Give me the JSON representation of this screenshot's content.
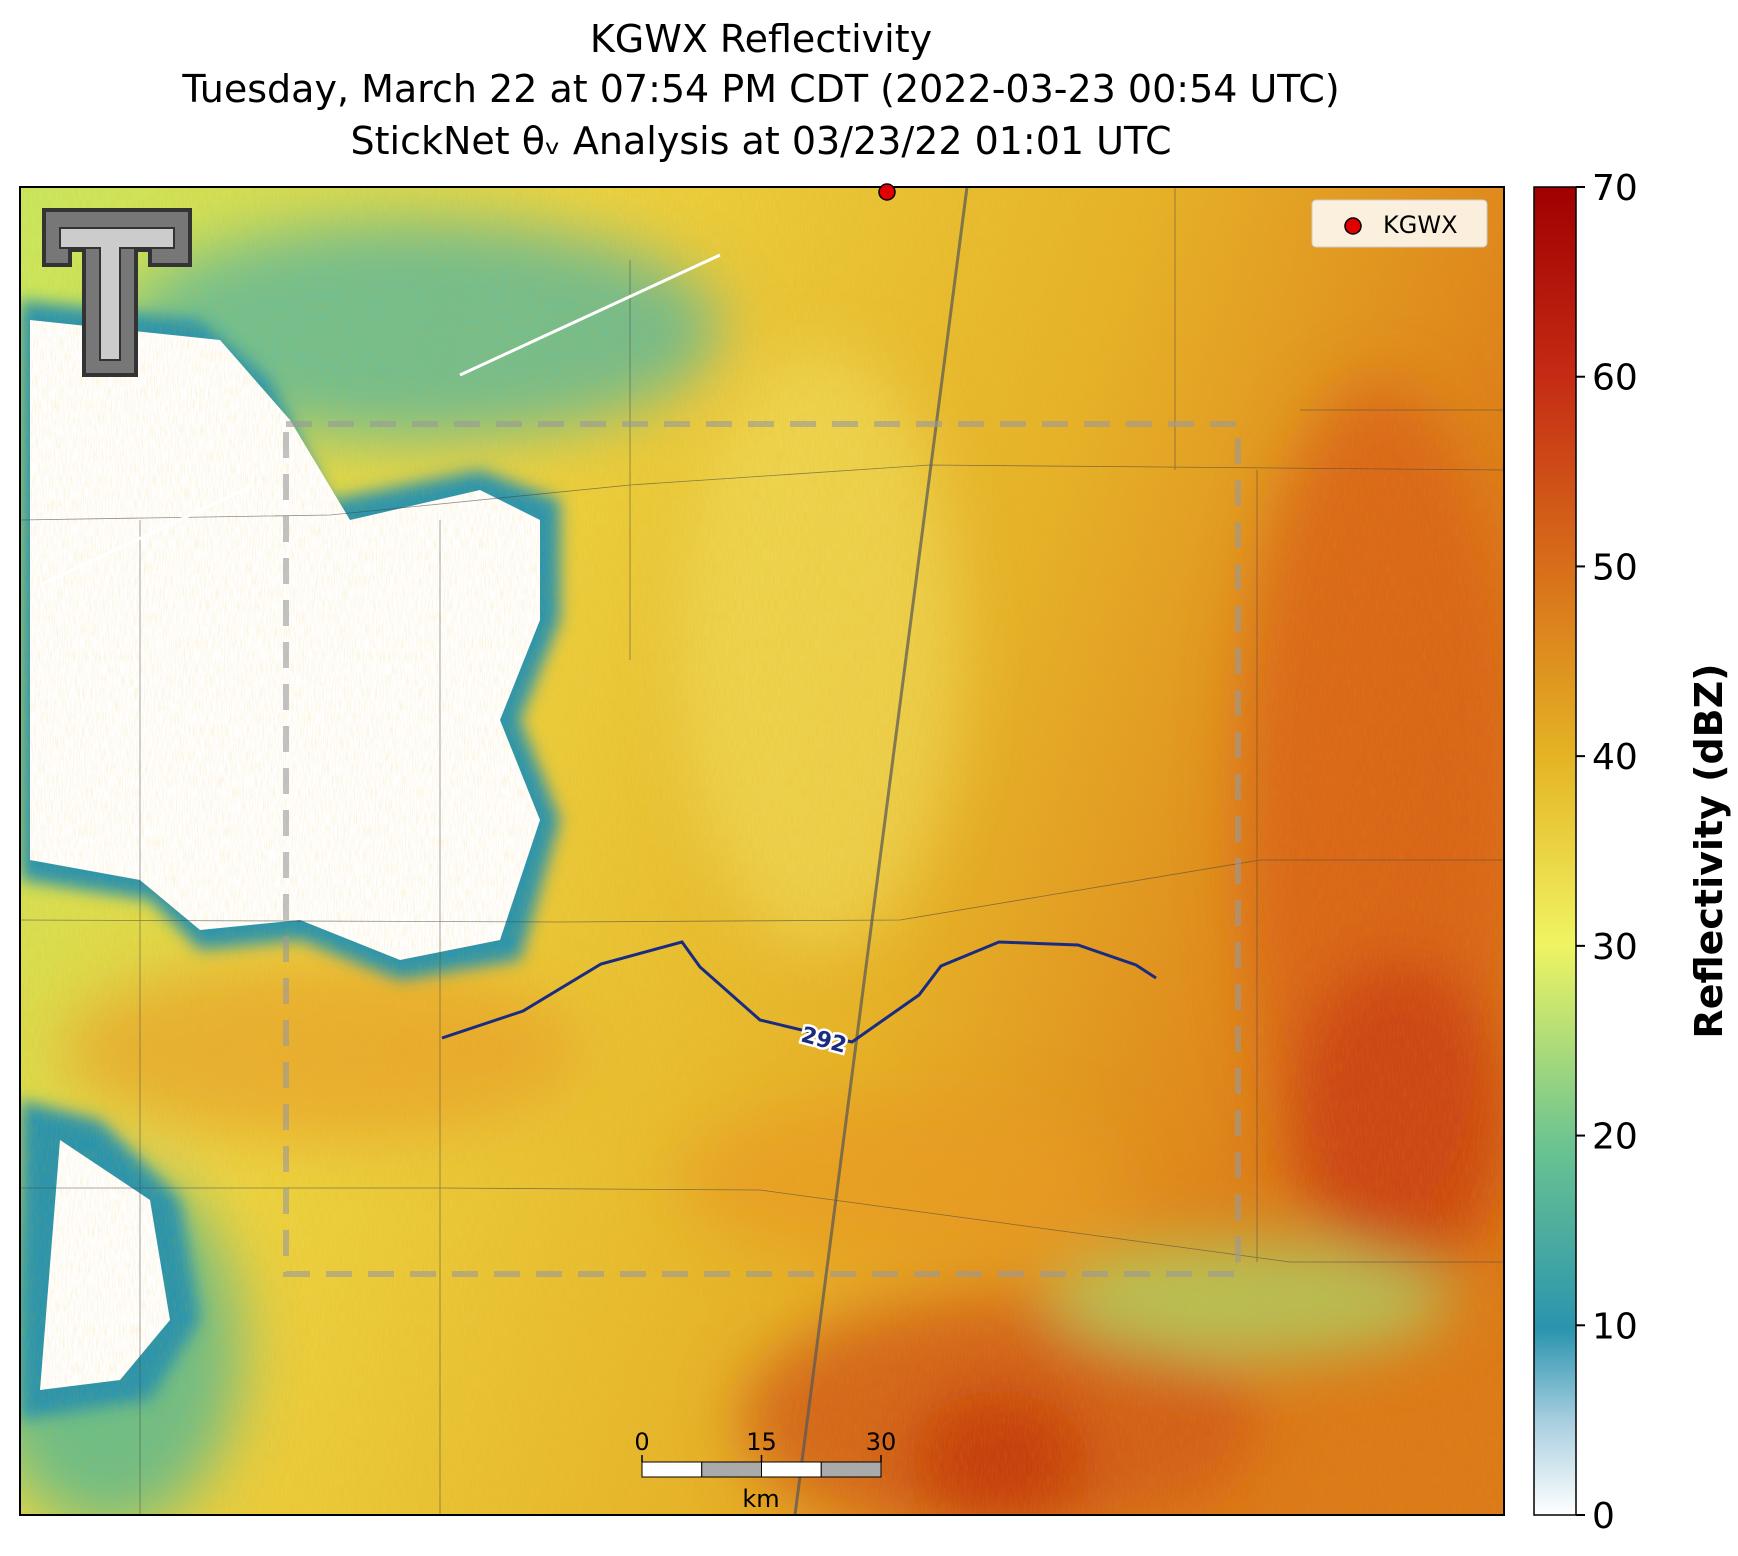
{
  "title": [
    "KGWX Reflectivity",
    "Tuesday, March 22 at 07:54 PM CDT (2022-03-23 00:54 UTC)",
    "StickNet θᵥ Analysis at 03/23/22 01:01 UTC"
  ],
  "legend": {
    "label": "KGWX"
  },
  "colorbar": {
    "label": "Reflectivity (dBZ)",
    "lim": [
      0,
      70
    ],
    "ticks": [
      0,
      10,
      20,
      30,
      40,
      50,
      60,
      70
    ]
  },
  "scale_bar": {
    "ticks": [
      0,
      15,
      30
    ],
    "unit": "km"
  },
  "contour": {
    "label": "292"
  }
}
